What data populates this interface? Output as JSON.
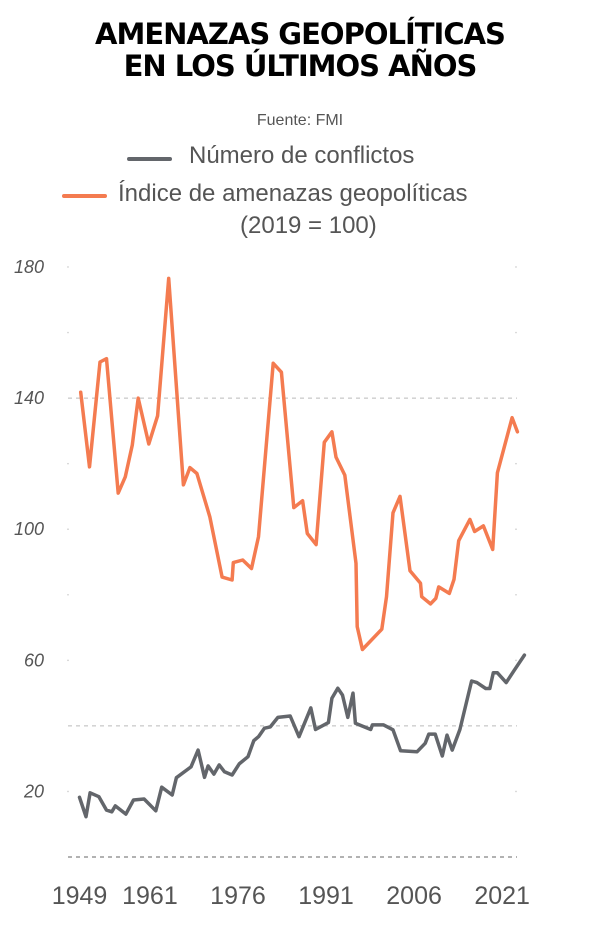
{
  "chart_data": {
    "type": "line",
    "title_lines": [
      "AMENAZAS GEOPOLÍTICAS",
      "EN LOS ÚLTIMOS AÑOS"
    ],
    "source": "Fuente: FMI",
    "xlabel": "",
    "ylabel": "",
    "x_ticks": [
      "1949",
      "1961",
      "1976",
      "1991",
      "2006",
      "2021"
    ],
    "y_ticks": [
      "180",
      "140",
      "100",
      "60",
      "20"
    ],
    "ylim": [
      0,
      180
    ],
    "xlim": [
      1949,
      2025
    ],
    "grid": "dashed lines at 0, 40 and 140",
    "legend_placement": "top",
    "series": [
      {
        "name": "Número de conflictos",
        "color": "#63666b",
        "points": [
          [
            1949,
            18.2
          ],
          [
            1950.1,
            12.3
          ],
          [
            1950.8,
            19.6
          ],
          [
            1952.3,
            18.4
          ],
          [
            1953.6,
            14.3
          ],
          [
            1954.5,
            13.8
          ],
          [
            1955.1,
            15.6
          ],
          [
            1956.9,
            13.1
          ],
          [
            1958.2,
            17.4
          ],
          [
            1960,
            17.7
          ],
          [
            1962,
            14.1
          ],
          [
            1963,
            21.3
          ],
          [
            1964.8,
            18.9
          ],
          [
            1965.5,
            24.2
          ],
          [
            1968,
            27.5
          ],
          [
            1969.2,
            32.6
          ],
          [
            1970.3,
            24.3
          ],
          [
            1970.9,
            27.8
          ],
          [
            1971.9,
            25.3
          ],
          [
            1972.8,
            28.1
          ],
          [
            1973.7,
            26
          ],
          [
            1975,
            25
          ],
          [
            1976.2,
            28.4
          ],
          [
            1977.7,
            30.6
          ],
          [
            1978.7,
            35.5
          ],
          [
            1979.5,
            36.7
          ],
          [
            1980.5,
            39.3
          ],
          [
            1981.5,
            39.7
          ],
          [
            1982.8,
            42.6
          ],
          [
            1984.9,
            43
          ],
          [
            1986.4,
            36.7
          ],
          [
            1988.4,
            45.5
          ],
          [
            1989.2,
            38.9
          ],
          [
            1991.4,
            41
          ],
          [
            1992,
            48.4
          ],
          [
            1993,
            51.5
          ],
          [
            1993.8,
            49.4
          ],
          [
            1994.7,
            42.6
          ],
          [
            1995.6,
            50
          ],
          [
            1996,
            40.8
          ],
          [
            1998.6,
            38.9
          ],
          [
            1998.9,
            40.3
          ],
          [
            2000.8,
            40.3
          ],
          [
            2002.4,
            38.8
          ],
          [
            2003.7,
            32.4
          ],
          [
            2006.5,
            32.1
          ],
          [
            2007.9,
            34.7
          ],
          [
            2008.5,
            37.5
          ],
          [
            2009.6,
            37.5
          ],
          [
            2010.8,
            30.8
          ],
          [
            2011.6,
            37.2
          ],
          [
            2012.5,
            32.6
          ],
          [
            2013.8,
            38.9
          ],
          [
            2015.8,
            53.7
          ],
          [
            2016.7,
            53.2
          ],
          [
            2018.2,
            51.4
          ],
          [
            2018.9,
            51.4
          ],
          [
            2019.5,
            56.2
          ],
          [
            2020.2,
            56.2
          ],
          [
            2021.7,
            53.2
          ],
          [
            2023,
            56.8
          ],
          [
            2024.8,
            61.6
          ]
        ]
      },
      {
        "name": "Índice de amenazas geopolíticas",
        "name_line2": "(2019 = 100)",
        "color": "#f47b50",
        "points": [
          [
            1949.2,
            141.8
          ],
          [
            1950.7,
            119
          ],
          [
            1952.5,
            151
          ],
          [
            1953.6,
            152
          ],
          [
            1955.6,
            111
          ],
          [
            1956.8,
            116
          ],
          [
            1958,
            125.7
          ],
          [
            1959,
            140
          ],
          [
            1960.8,
            126
          ],
          [
            1962.3,
            134.6
          ],
          [
            1964.2,
            176.5
          ],
          [
            1966.7,
            113.5
          ],
          [
            1967.8,
            118.8
          ],
          [
            1969,
            117
          ],
          [
            1971.2,
            103.8
          ],
          [
            1973.3,
            85.4
          ],
          [
            1975,
            84.5
          ],
          [
            1975.2,
            89.8
          ],
          [
            1976.8,
            90.6
          ],
          [
            1978.3,
            88
          ],
          [
            1979.5,
            97.7
          ],
          [
            1982,
            150.6
          ],
          [
            1983.4,
            147.9
          ],
          [
            1985.5,
            106.6
          ],
          [
            1987,
            108.7
          ],
          [
            1987.8,
            98.7
          ],
          [
            1989.3,
            95.3
          ],
          [
            1990.7,
            126.5
          ],
          [
            1992,
            129.7
          ],
          [
            1992.7,
            122
          ],
          [
            1994.2,
            116.5
          ],
          [
            1996.1,
            89.6
          ],
          [
            1996.3,
            70.3
          ],
          [
            1997.2,
            63.3
          ],
          [
            2000.5,
            69.5
          ],
          [
            2001.3,
            79.4
          ],
          [
            2002.4,
            105
          ],
          [
            2003.6,
            110
          ],
          [
            2005.3,
            87.3
          ],
          [
            2007.1,
            83.5
          ],
          [
            2007.3,
            79.4
          ],
          [
            2008.8,
            77.2
          ],
          [
            2009.7,
            78.9
          ],
          [
            2010.2,
            82.4
          ],
          [
            2012,
            80.4
          ],
          [
            2012.8,
            84.7
          ],
          [
            2013.6,
            96.5
          ],
          [
            2015.5,
            103
          ],
          [
            2016.3,
            99.3
          ],
          [
            2017.8,
            101
          ],
          [
            2019.4,
            93.8
          ],
          [
            2020.2,
            117.2
          ],
          [
            2022.7,
            134
          ],
          [
            2023.6,
            129.7
          ]
        ]
      }
    ]
  }
}
